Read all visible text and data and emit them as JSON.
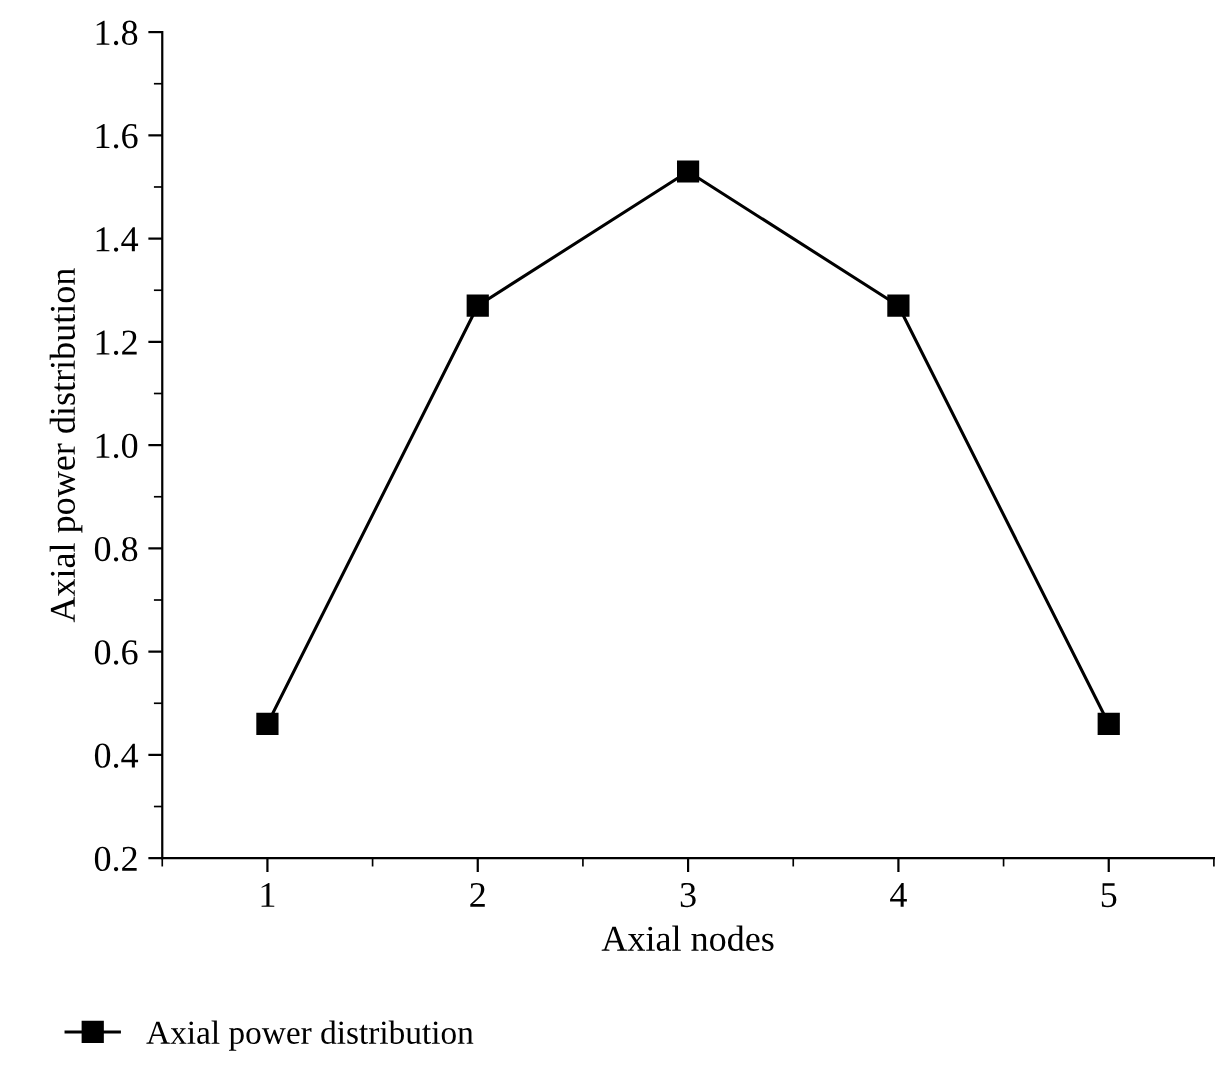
{
  "chart_data": {
    "type": "line",
    "xlabel": "Axial nodes",
    "ylabel": "Axial power distribution",
    "x": [
      1,
      2,
      3,
      4,
      5
    ],
    "series": [
      {
        "name": "Axial power distribution",
        "color": "#000000",
        "values": [
          0.46,
          1.27,
          1.53,
          1.27,
          0.46
        ]
      }
    ],
    "xlim": [
      0.5,
      5.5
    ],
    "xticks": [
      1,
      2,
      3,
      4,
      5
    ],
    "ylim": [
      0.2,
      1.8
    ],
    "yticks": [
      0.2,
      0.4,
      0.6,
      0.8,
      {
        "value": 1.0,
        "label": "1.0"
      },
      1.2,
      1.4,
      1.6,
      1.8
    ],
    "marker": "square",
    "line_style": "solid",
    "grid": false,
    "legend": "bottom"
  }
}
